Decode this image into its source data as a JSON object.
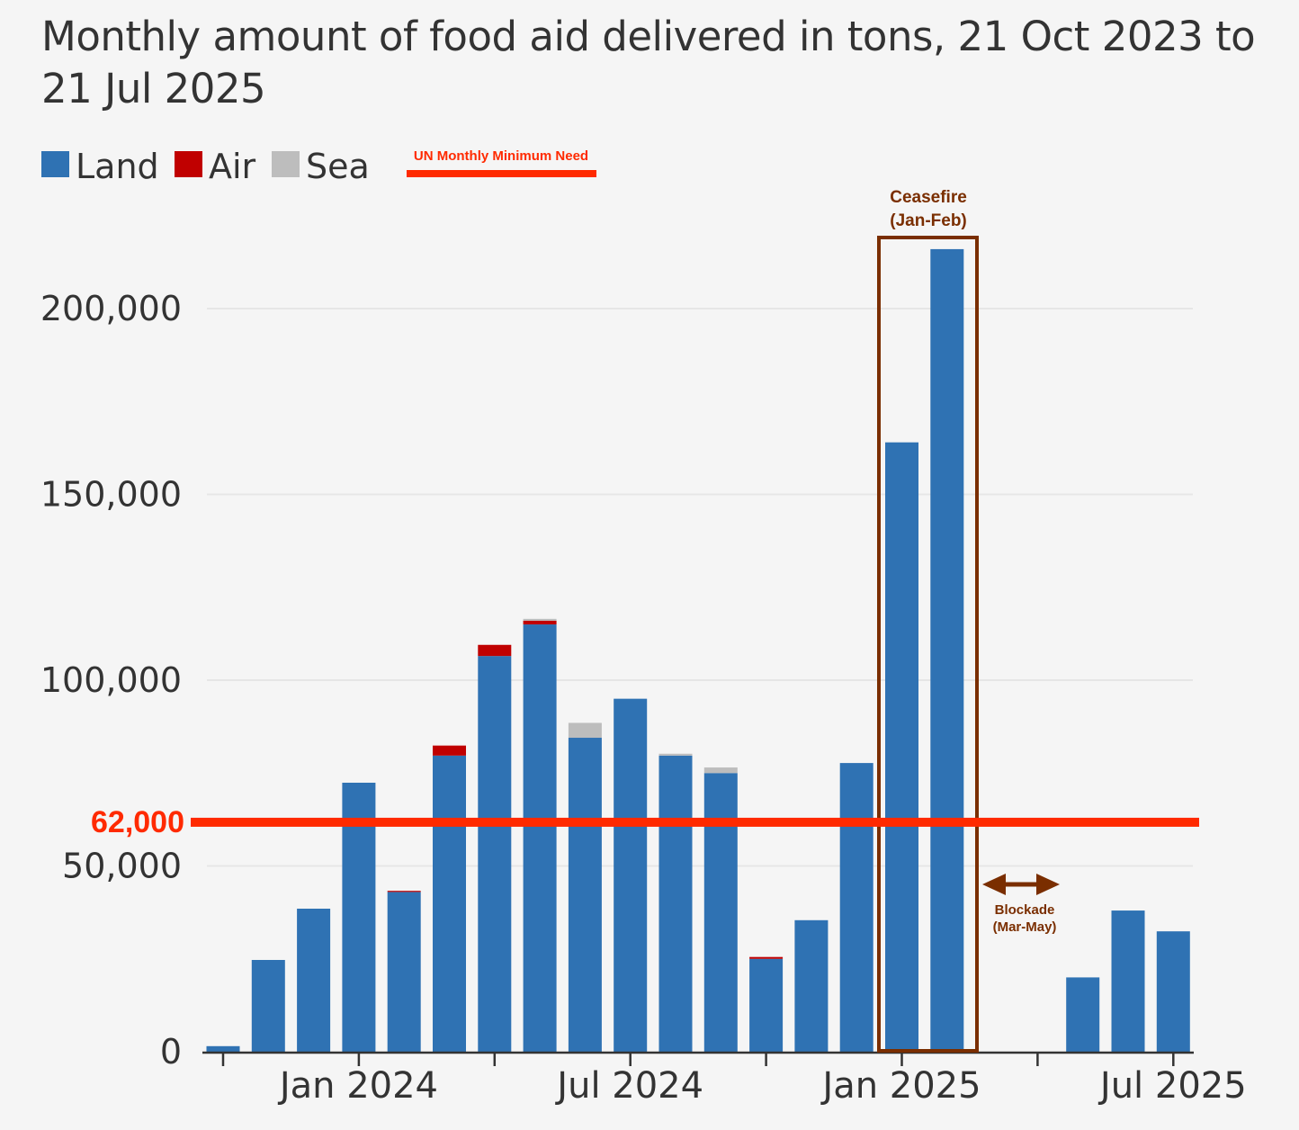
{
  "chart_data": {
    "type": "bar",
    "stacked": true,
    "title": "Monthly amount of food aid delivered in tons, 21 Oct 2023 to 21 Jul 2025",
    "xlabel": "",
    "ylabel": "",
    "ylim": [
      0,
      215000
    ],
    "yticks": [
      0,
      50000,
      100000,
      150000,
      200000
    ],
    "ytick_labels": [
      "0",
      "50,000",
      "100,000",
      "150,000",
      "200,000"
    ],
    "xtick_labels": [
      {
        "index": 3,
        "label": "Jan 2024"
      },
      {
        "index": 9,
        "label": "Jul 2024"
      },
      {
        "index": 15,
        "label": "Jan 2025"
      },
      {
        "index": 21,
        "label": "Jul 2025"
      }
    ],
    "categories": [
      "Oct 2023",
      "Nov 2023",
      "Dec 2023",
      "Jan 2024",
      "Feb 2024",
      "Mar 2024",
      "Apr 2024",
      "May 2024",
      "Jun 2024",
      "Jul 2024",
      "Aug 2024",
      "Sep 2024",
      "Oct 2024",
      "Nov 2024",
      "Dec 2024",
      "Jan 2025",
      "Feb 2025",
      "Mar 2025",
      "Apr 2025",
      "May 2025",
      "Jun 2025",
      "Jul 2025"
    ],
    "series": [
      {
        "name": "Land",
        "color": "#2f72b3",
        "values": [
          1500,
          24700,
          38500,
          72400,
          43000,
          79700,
          106500,
          115000,
          84500,
          95000,
          79700,
          75000,
          25000,
          35400,
          77700,
          164000,
          216000,
          0,
          0,
          20000,
          38000,
          32400
        ]
      },
      {
        "name": "Air",
        "color": "#c00000",
        "values": [
          0,
          0,
          0,
          0,
          300,
          2700,
          3000,
          1000,
          0,
          0,
          0,
          0,
          500,
          0,
          0,
          0,
          0,
          0,
          0,
          0,
          0,
          0
        ]
      },
      {
        "name": "Sea",
        "color": "#bdbdbd",
        "values": [
          0,
          0,
          0,
          0,
          0,
          0,
          0,
          500,
          4000,
          0,
          500,
          1500,
          0,
          0,
          0,
          0,
          0,
          0,
          0,
          0,
          0,
          0
        ]
      }
    ],
    "legend_position": "top-left",
    "reference_line": {
      "value": 62000,
      "label": "62,000",
      "legend_label": "UN Monthly Minimum Need",
      "color": "#ff2a00"
    },
    "annotations": [
      {
        "label": "Ceasefire",
        "sublabel": "(Jan-Feb)",
        "range": [
          "Jan 2025",
          "Feb 2025"
        ],
        "color": "#7a2e00"
      },
      {
        "label": "Blockade",
        "sublabel": "(Mar-May)",
        "range": [
          "Mar 2025",
          "May 2025"
        ],
        "color": "#7a2e00"
      }
    ]
  }
}
